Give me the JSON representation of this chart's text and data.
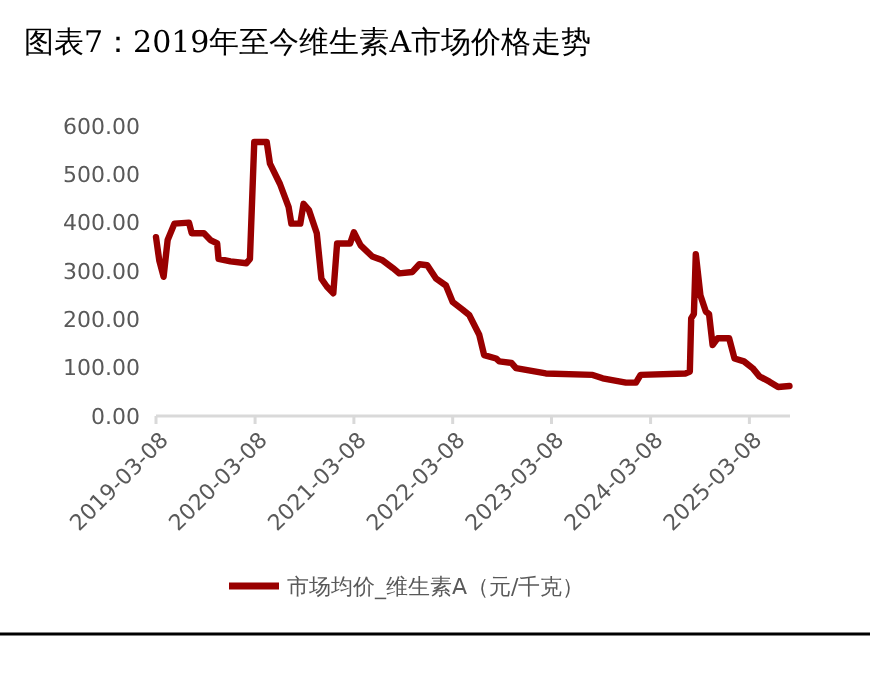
{
  "chart_data": {
    "type": "line",
    "title": "图表7：2019年至今维生素A市场价格走势",
    "x": [
      "2019-03-08",
      "2019-03-20",
      "2019-04-05",
      "2019-04-20",
      "2019-05-15",
      "2019-07-08",
      "2019-07-18",
      "2019-09-01",
      "2019-09-25",
      "2019-10-20",
      "2019-10-25",
      "2019-12-08",
      "2020-02-05",
      "2020-02-18",
      "2020-03-05",
      "2020-04-20",
      "2020-05-02",
      "2020-06-08",
      "2020-07-10",
      "2020-07-20",
      "2020-08-22",
      "2020-09-03",
      "2020-09-23",
      "2020-10-22",
      "2020-11-08",
      "2020-11-28",
      "2020-12-22",
      "2021-01-05",
      "2021-02-22",
      "2021-03-08",
      "2021-04-02",
      "2021-05-15",
      "2021-06-22",
      "2021-07-30",
      "2021-08-23",
      "2021-10-10",
      "2021-11-05",
      "2021-12-04",
      "2022-01-06",
      "2022-02-11",
      "2022-03-08",
      "2022-04-14",
      "2022-05-08",
      "2022-06-14",
      "2022-07-02",
      "2022-08-15",
      "2022-08-27",
      "2022-10-11",
      "2022-10-28",
      "2023-02-15",
      "2023-08-07",
      "2023-09-13",
      "2023-12-08",
      "2024-01-14",
      "2024-01-31",
      "2024-07-16",
      "2024-07-31",
      "2024-08-05",
      "2024-08-15",
      "2024-08-22",
      "2024-09-08",
      "2024-09-28",
      "2024-10-10",
      "2024-10-23",
      "2024-11-11",
      "2024-12-23",
      "2025-01-12",
      "2025-02-16",
      "2025-03-20",
      "2025-04-14",
      "2025-05-21",
      "2025-06-22",
      "2025-08-03"
    ],
    "series": [
      {
        "name": "市场均价_维生素A（元/千克）",
        "color": "#990000",
        "values": [
          370,
          322,
          288,
          364,
          398,
          400,
          378,
          378,
          364,
          357,
          325,
          320,
          316,
          325,
          567,
          567,
          522,
          480,
          432,
          398,
          398,
          439,
          426,
          378,
          284,
          268,
          254,
          357,
          357,
          380,
          353,
          330,
          322,
          306,
          295,
          298,
          314,
          312,
          284,
          270,
          236,
          220,
          209,
          168,
          126,
          119,
          113,
          110,
          99,
          88,
          85,
          78,
          69,
          69,
          85,
          88,
          92,
          202,
          211,
          335,
          250,
          216,
          211,
          147,
          161,
          161,
          119,
          113,
          99,
          82,
          71,
          60,
          62
        ]
      }
    ],
    "xlim": [
      "2019-03-08",
      "2025-08-05"
    ],
    "xticks": [
      {
        "value": "2019-03-08",
        "label": "2019-03-08"
      },
      {
        "value": "2020-03-08",
        "label": "2020-03-08"
      },
      {
        "value": "2021-03-08",
        "label": "2021-03-08"
      },
      {
        "value": "2022-03-08",
        "label": "2022-03-08"
      },
      {
        "value": "2023-03-08",
        "label": "2023-03-08"
      },
      {
        "value": "2024-03-08",
        "label": "2024-03-08"
      },
      {
        "value": "2025-03-08",
        "label": "2025-03-08"
      }
    ],
    "ylim": [
      0,
      600
    ],
    "yticks": [
      {
        "value": 0,
        "label": "0.00"
      },
      {
        "value": 100,
        "label": "100.00"
      },
      {
        "value": 200,
        "label": "200.00"
      },
      {
        "value": 300,
        "label": "300.00"
      },
      {
        "value": 400,
        "label": "400.00"
      },
      {
        "value": 500,
        "label": "500.00"
      },
      {
        "value": 600,
        "label": "600.00"
      }
    ],
    "legend": "bottom",
    "grid": false,
    "marker": "none",
    "line_style": "solid"
  }
}
